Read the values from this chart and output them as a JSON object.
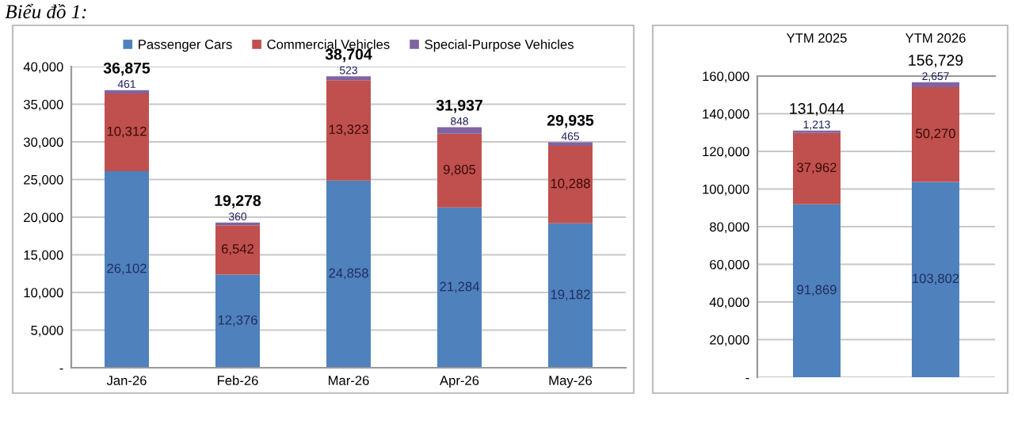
{
  "chart_data": [
    {
      "type": "bar",
      "title": "Biểu đồ 1:",
      "categories": [
        "Jan-26",
        "Feb-26",
        "Mar-26",
        "Apr-26",
        "May-26"
      ],
      "stacked": true,
      "series": [
        {
          "name": "Passenger Cars",
          "color": "#4f81bd",
          "values": [
            26102,
            12376,
            24858,
            21284,
            19182
          ],
          "value_labels": [
            "26,102",
            "12,376",
            "24,858",
            "21,284",
            "19,182"
          ]
        },
        {
          "name": "Commercial Vehicles",
          "color": "#c0504d",
          "values": [
            10312,
            6542,
            13323,
            9805,
            10288
          ],
          "value_labels": [
            "10,312",
            "6,542",
            "13,323",
            "9,805",
            "10,288"
          ]
        },
        {
          "name": "Special-Purpose Vehicles",
          "color": "#8064a2",
          "values": [
            461,
            360,
            523,
            848,
            465
          ],
          "value_labels": [
            "461",
            "360",
            "523",
            "848",
            "465"
          ]
        }
      ],
      "totals": [
        "36,875",
        "19,278",
        "38,704",
        "31,937",
        "29,935"
      ],
      "ylim": [
        0,
        40000
      ],
      "yticks": [
        {
          "value": 0,
          "label": "-"
        },
        {
          "value": 5000,
          "label": "5,000"
        },
        {
          "value": 10000,
          "label": "10,000"
        },
        {
          "value": 15000,
          "label": "15,000"
        },
        {
          "value": 20000,
          "label": "20,000"
        },
        {
          "value": 25000,
          "label": "25,000"
        },
        {
          "value": 30000,
          "label": "30,000"
        },
        {
          "value": 35000,
          "label": "35,000"
        },
        {
          "value": 40000,
          "label": "40,000"
        }
      ],
      "grid": "y",
      "legend": "top"
    },
    {
      "type": "bar",
      "categories": [
        "YTM 2025",
        "YTM 2026"
      ],
      "stacked": true,
      "series": [
        {
          "color": "#4f81bd",
          "values": [
            91869,
            103802
          ],
          "value_labels": [
            "91,869",
            "103,802"
          ]
        },
        {
          "color": "#c0504d",
          "values": [
            37962,
            50270
          ],
          "value_labels": [
            "37,962",
            "50,270"
          ]
        },
        {
          "color": "#8064a2",
          "values": [
            1213,
            2657
          ],
          "value_labels": [
            "1,213",
            "2,657"
          ]
        }
      ],
      "totals": [
        "131,044",
        "156,729"
      ],
      "ylim": [
        0,
        160000
      ],
      "yticks": [
        {
          "value": 0,
          "label": "-"
        },
        {
          "value": 20000,
          "label": "20,000"
        },
        {
          "value": 40000,
          "label": "40,000"
        },
        {
          "value": 60000,
          "label": "60,000"
        },
        {
          "value": 80000,
          "label": "80,000"
        },
        {
          "value": 100000,
          "label": "100,000"
        },
        {
          "value": 120000,
          "label": "120,000"
        },
        {
          "value": 140000,
          "label": "140,000"
        },
        {
          "value": 160000,
          "label": "160,000"
        }
      ],
      "grid": "y"
    }
  ]
}
